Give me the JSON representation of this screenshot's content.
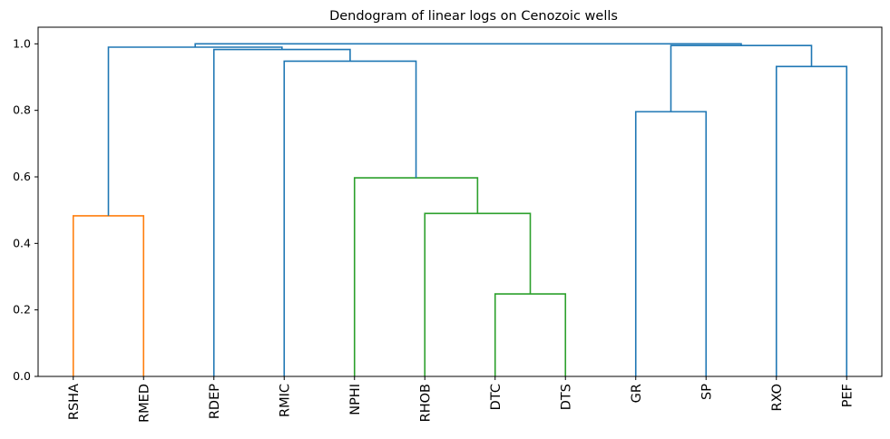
{
  "chart_data": {
    "type": "dendrogram",
    "title": "Dendogram of linear logs on Cenozoic wells",
    "ylim": [
      0,
      1.05
    ],
    "yticks": [
      "0.0",
      "0.2",
      "0.4",
      "0.6",
      "0.8",
      "1.0"
    ],
    "grid": false,
    "leaves": [
      "RSHA",
      "RMED",
      "RDEP",
      "RMIC",
      "NPHI",
      "RHOB",
      "DTC",
      "DTS",
      "GR",
      "SP",
      "RXO",
      "PEF"
    ],
    "colors": {
      "c1": "#ff7f0e",
      "c2": "#2ca02c",
      "above": "#1f77b4"
    },
    "merges": [
      {
        "id": "m1",
        "left": "L0",
        "right": "L1",
        "height": 0.483,
        "color": "c1"
      },
      {
        "id": "m2",
        "left": "L6",
        "right": "L7",
        "height": 0.248,
        "color": "c2"
      },
      {
        "id": "m3",
        "left": "L5",
        "right": "m2",
        "height": 0.49,
        "color": "c2"
      },
      {
        "id": "m4",
        "left": "L4",
        "right": "m3",
        "height": 0.597,
        "color": "c2"
      },
      {
        "id": "m5",
        "left": "L3",
        "right": "m4",
        "height": 0.948,
        "color": "above"
      },
      {
        "id": "m6",
        "left": "L2",
        "right": "m5",
        "height": 0.983,
        "color": "above"
      },
      {
        "id": "m7",
        "left": "m1",
        "right": "m6",
        "height": 0.99,
        "color": "above"
      },
      {
        "id": "m8",
        "left": "L8",
        "right": "L9",
        "height": 0.796,
        "color": "above"
      },
      {
        "id": "m9",
        "left": "L10",
        "right": "L11",
        "height": 0.932,
        "color": "above"
      },
      {
        "id": "m10",
        "left": "m8",
        "right": "m9",
        "height": 0.995,
        "color": "above"
      },
      {
        "id": "m11",
        "left": "m7",
        "right": "m10",
        "height": 1.0,
        "color": "above"
      }
    ]
  }
}
